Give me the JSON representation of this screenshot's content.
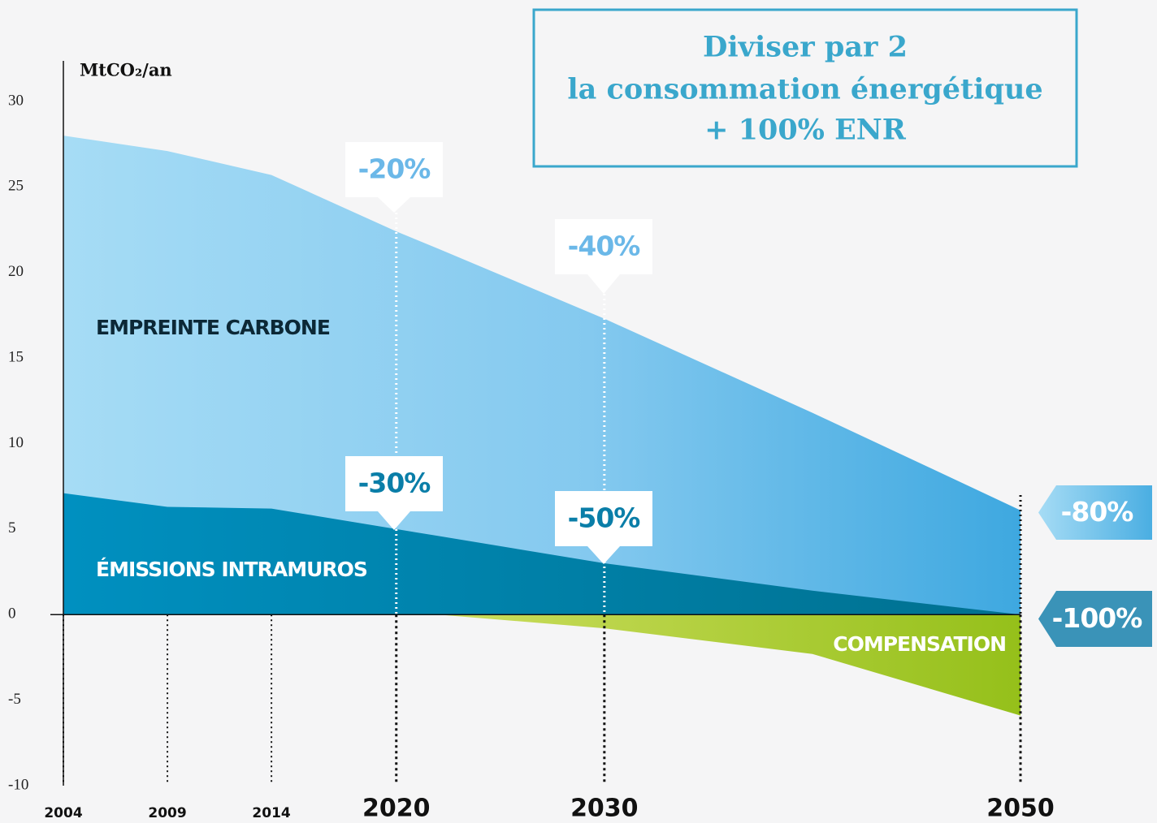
{
  "chart_data": {
    "type": "area",
    "box_text": [
      "Diviser par 2",
      "la consommation énergétique",
      "+ 100% ENR"
    ],
    "y_label": "MtCO₂/an",
    "x": [
      2004,
      2009,
      2014,
      2020,
      2022,
      2030,
      2040,
      2050
    ],
    "xlim": [
      2004,
      2050
    ],
    "xticks": [
      2004,
      2009,
      2014,
      2020,
      2030,
      2050
    ],
    "ylim": [
      -10,
      30
    ],
    "yticks": [
      30,
      25,
      20,
      15,
      10,
      5,
      0,
      -5,
      -10
    ],
    "series": [
      {
        "name": "EMPREINTE CARBONE",
        "color": "#8ccdf0",
        "values": [
          28,
          27.1,
          25.7,
          22.4,
          21.4,
          17.3,
          11.8,
          6.1
        ]
      },
      {
        "name": "ÉMISSIONS INTRAMUROS",
        "color": "#0088b8",
        "values": [
          7.1,
          6.3,
          6.2,
          5.0,
          4.6,
          3.0,
          1.4,
          0
        ]
      },
      {
        "name": "COMPENSATION",
        "color": "#b5d334",
        "values": [
          0,
          0,
          0,
          0,
          0,
          -0.8,
          -2.3,
          -5.9
        ]
      }
    ],
    "annotations": [
      "-20%",
      "-40%",
      "-30%",
      "-50%",
      "-80%",
      "-100%"
    ]
  }
}
